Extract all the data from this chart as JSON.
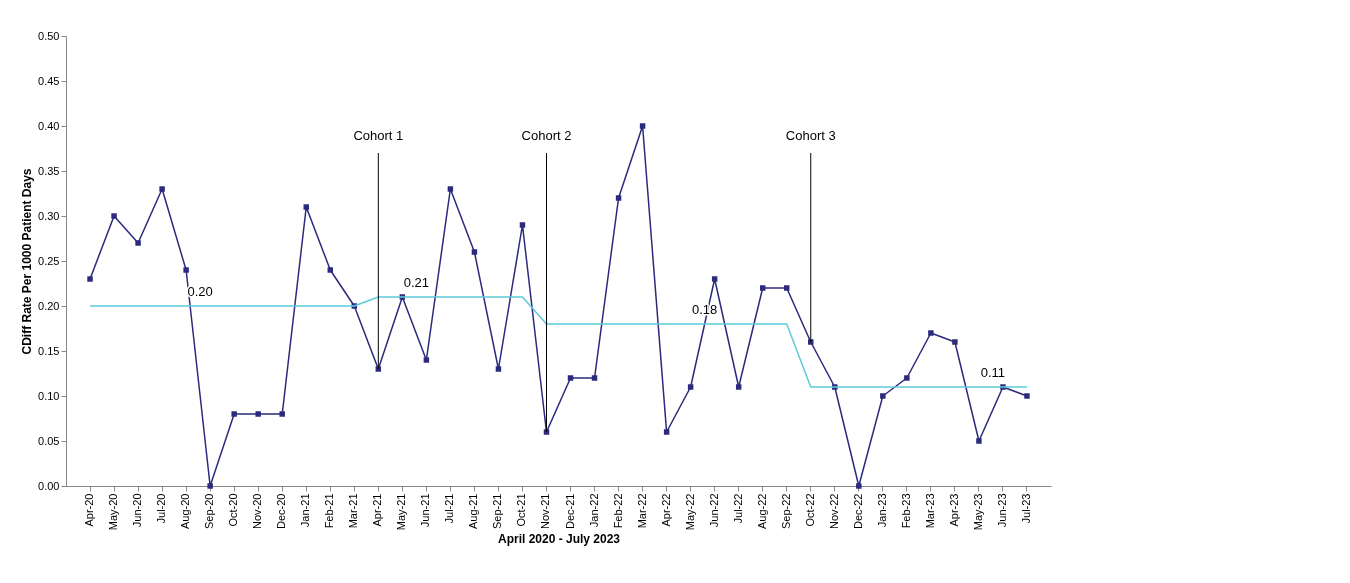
{
  "chart_data": {
    "type": "line",
    "xlabel": "April 2020 - July 2023",
    "ylabel": "CDiff Rate Per 1000 Patient Days",
    "categories": [
      "Apr-20",
      "May-20",
      "Jun-20",
      "Jul-20",
      "Aug-20",
      "Sep-20",
      "Oct-20",
      "Nov-20",
      "Dec-20",
      "Jan-21",
      "Feb-21",
      "Mar-21",
      "Apr-21",
      "May-21",
      "Jun-21",
      "Jul-21",
      "Aug-21",
      "Sep-21",
      "Oct-21",
      "Nov-21",
      "Dec-21",
      "Jan-22",
      "Feb-22",
      "Mar-22",
      "Apr-22",
      "May-22",
      "Jun-22",
      "Jul-22",
      "Aug-22",
      "Sep-22",
      "Oct-22",
      "Nov-22",
      "Dec-22",
      "Jan-23",
      "Feb-23",
      "Mar-23",
      "Apr-23",
      "May-23",
      "Jun-23",
      "Jul-23"
    ],
    "series": [
      {
        "color": "#2b2a7c",
        "marker": "square",
        "values": [
          0.23,
          0.3,
          0.27,
          0.33,
          0.24,
          0.0,
          0.08,
          0.08,
          0.08,
          0.31,
          0.24,
          0.2,
          0.13,
          0.21,
          0.14,
          0.33,
          0.26,
          0.13,
          0.29,
          0.06,
          0.12,
          0.12,
          0.32,
          0.4,
          0.06,
          0.11,
          0.23,
          0.11,
          0.22,
          0.22,
          0.16,
          0.11,
          0.0,
          0.1,
          0.12,
          0.17,
          0.16,
          0.05,
          0.11,
          0.1
        ]
      },
      {
        "color": "#5ccbdb",
        "values": [
          0.2,
          0.2,
          0.2,
          0.2,
          0.2,
          0.2,
          0.2,
          0.2,
          0.2,
          0.2,
          0.2,
          0.2,
          0.21,
          0.21,
          0.21,
          0.21,
          0.21,
          0.21,
          0.21,
          0.18,
          0.18,
          0.18,
          0.18,
          0.18,
          0.18,
          0.18,
          0.18,
          0.18,
          0.18,
          0.18,
          0.11,
          0.11,
          0.11,
          0.11,
          0.11,
          0.11,
          0.11,
          0.11,
          0.11,
          0.11
        ],
        "value_labels": [
          null,
          null,
          null,
          null,
          "0.20",
          null,
          null,
          null,
          null,
          null,
          null,
          null,
          null,
          "0.21",
          null,
          null,
          null,
          null,
          null,
          null,
          null,
          null,
          null,
          null,
          null,
          "0.18",
          null,
          null,
          null,
          null,
          null,
          null,
          null,
          null,
          null,
          null,
          null,
          "0.11",
          null,
          null
        ]
      }
    ],
    "annotations": [
      {
        "text": "Cohort 1",
        "x": "Apr-21",
        "y": 0.13
      },
      {
        "text": "Cohort 2",
        "x": "Nov-21",
        "y": 0.06
      },
      {
        "text": "Cohort 3",
        "x": "Oct-22",
        "y": 0.16
      }
    ],
    "ylim": [
      0,
      0.5
    ],
    "yticks": [
      {
        "value": 0,
        "label": "0.00"
      },
      0.05,
      {
        "value": 0.1,
        "label": "0.10"
      },
      0.15,
      {
        "value": 0.2,
        "label": "0.20"
      },
      0.25,
      {
        "value": 0.3,
        "label": "0.30"
      },
      0.35,
      {
        "value": 0.4,
        "label": "0.40"
      },
      0.45,
      {
        "value": 0.5,
        "label": "0.50"
      }
    ]
  }
}
